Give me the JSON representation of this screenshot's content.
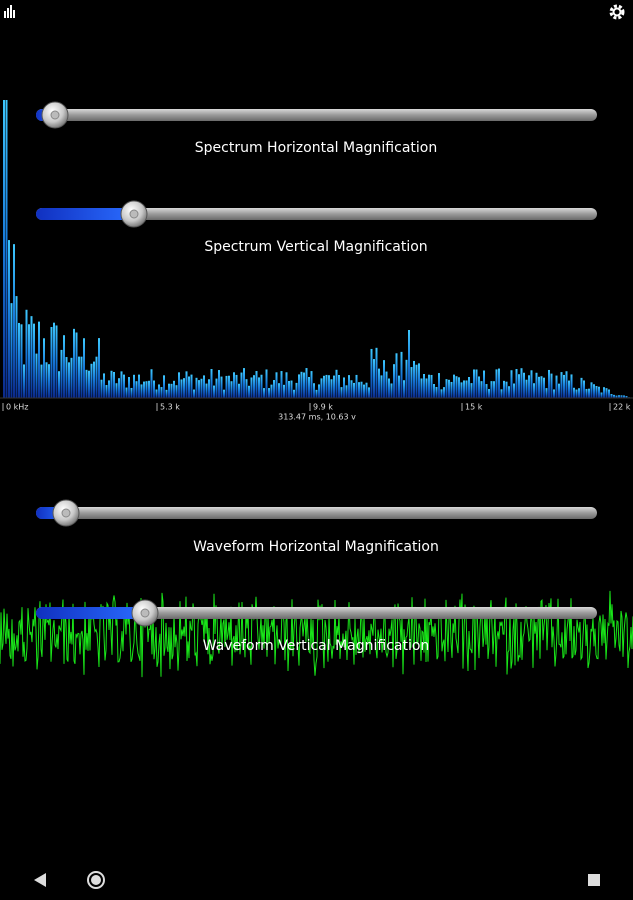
{
  "sliders": [
    {
      "label": "Spectrum Horizontal Magnification"
    },
    {
      "label": "Spectrum Vertical Magnification"
    },
    {
      "label": "Waveform Horizontal Magnification"
    },
    {
      "label": "Waveform Vertical Magnification"
    }
  ],
  "spectrum": {
    "axis_labels": [
      "0 kHz",
      "5.3 k",
      "9.9 k",
      "15 k",
      "22 k"
    ],
    "readout": "313.47 ms, 10.63 v"
  }
}
